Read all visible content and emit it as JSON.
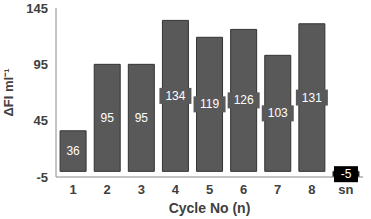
{
  "chart_data": {
    "type": "bar",
    "categories": [
      "1",
      "2",
      "3",
      "4",
      "5",
      "6",
      "7",
      "8",
      "sn"
    ],
    "values": [
      36,
      95,
      95,
      134,
      119,
      126,
      103,
      131,
      -5
    ],
    "colors": [
      "#595959",
      "#595959",
      "#595959",
      "#595959",
      "#595959",
      "#595959",
      "#595959",
      "#595959",
      "#000000"
    ],
    "x_label": "Cycle No (n)",
    "y_label": "ΔFI ml⁻¹",
    "ylim": [
      -5,
      145
    ],
    "yticks": [
      -5,
      45,
      95,
      145
    ],
    "grid": false,
    "data_labels": true
  }
}
